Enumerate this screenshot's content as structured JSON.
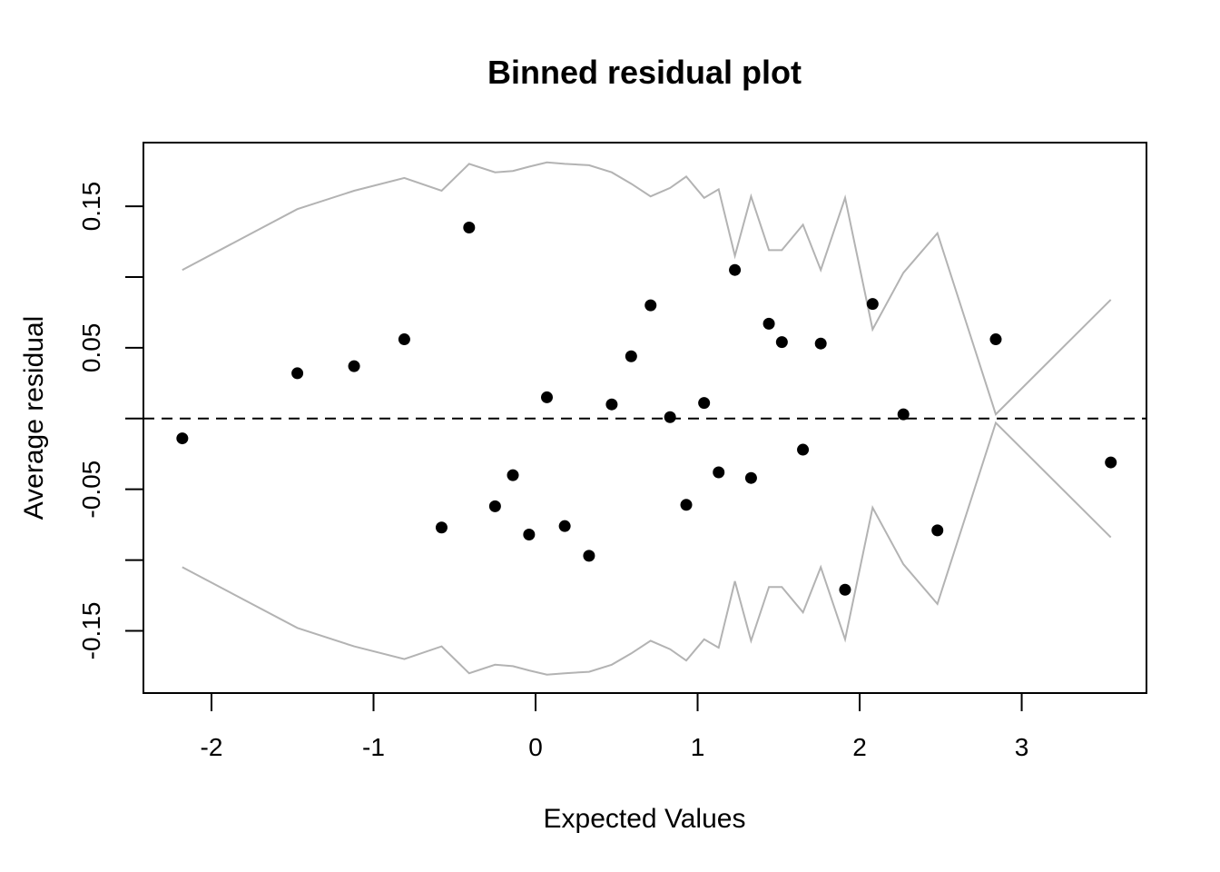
{
  "chart_data": {
    "type": "scatter",
    "title": "Binned residual plot",
    "xlabel": "Expected Values",
    "ylabel": "Average residual",
    "xlim": [
      -2.42,
      3.77
    ],
    "ylim": [
      -0.194,
      0.195
    ],
    "x_ticks": [
      -2,
      -1,
      0,
      1,
      2,
      3
    ],
    "x_tick_labels": [
      "-2",
      "-1",
      "0",
      "1",
      "2",
      "3"
    ],
    "y_ticks": [
      -0.15,
      -0.1,
      -0.05,
      0.0,
      0.05,
      0.1,
      0.15
    ],
    "y_tick_labels": [
      "-0.15",
      "",
      "-0.05",
      "",
      "0.05",
      "",
      "0.15"
    ],
    "reference_line": {
      "y": 0,
      "style": "dashed",
      "color": "#000000"
    },
    "grid": false,
    "points": {
      "name": "",
      "color": "#000000",
      "x": [
        -2.18,
        -1.47,
        -1.12,
        -0.81,
        -0.58,
        -0.41,
        -0.25,
        -0.14,
        -0.04,
        0.07,
        0.18,
        0.33,
        0.47,
        0.59,
        0.71,
        0.83,
        0.93,
        1.04,
        1.13,
        1.23,
        1.33,
        1.44,
        1.52,
        1.65,
        1.76,
        1.91,
        2.08,
        2.27,
        2.48,
        2.84,
        3.55
      ],
      "y": [
        -0.014,
        0.032,
        0.037,
        0.056,
        -0.077,
        0.135,
        -0.062,
        -0.04,
        -0.082,
        0.015,
        -0.076,
        -0.097,
        0.01,
        0.044,
        0.08,
        0.001,
        -0.061,
        0.011,
        -0.038,
        0.105,
        -0.042,
        0.067,
        0.054,
        -0.022,
        0.053,
        -0.121,
        0.081,
        0.003,
        -0.079,
        0.056,
        -0.031
      ]
    },
    "bounds": {
      "color": "#b3b3b3",
      "x": [
        -2.18,
        -1.47,
        -1.12,
        -0.81,
        -0.58,
        -0.41,
        -0.25,
        -0.14,
        -0.04,
        0.07,
        0.18,
        0.33,
        0.47,
        0.59,
        0.71,
        0.83,
        0.93,
        1.04,
        1.13,
        1.23,
        1.33,
        1.44,
        1.52,
        1.65,
        1.76,
        1.91,
        2.08,
        2.27,
        2.48,
        2.84,
        3.55
      ],
      "upper": [
        0.105,
        0.148,
        0.161,
        0.17,
        0.161,
        0.18,
        0.174,
        0.175,
        0.178,
        0.181,
        0.18,
        0.179,
        0.174,
        0.166,
        0.157,
        0.163,
        0.171,
        0.156,
        0.162,
        0.115,
        0.157,
        0.119,
        0.119,
        0.137,
        0.105,
        0.156,
        0.063,
        0.103,
        0.131,
        0.003,
        0.084
      ],
      "lower": [
        -0.105,
        -0.148,
        -0.161,
        -0.17,
        -0.161,
        -0.18,
        -0.174,
        -0.175,
        -0.178,
        -0.181,
        -0.18,
        -0.179,
        -0.174,
        -0.166,
        -0.157,
        -0.163,
        -0.171,
        -0.156,
        -0.162,
        -0.115,
        -0.157,
        -0.119,
        -0.119,
        -0.137,
        -0.105,
        -0.156,
        -0.063,
        -0.103,
        -0.131,
        -0.003,
        -0.084
      ]
    }
  }
}
